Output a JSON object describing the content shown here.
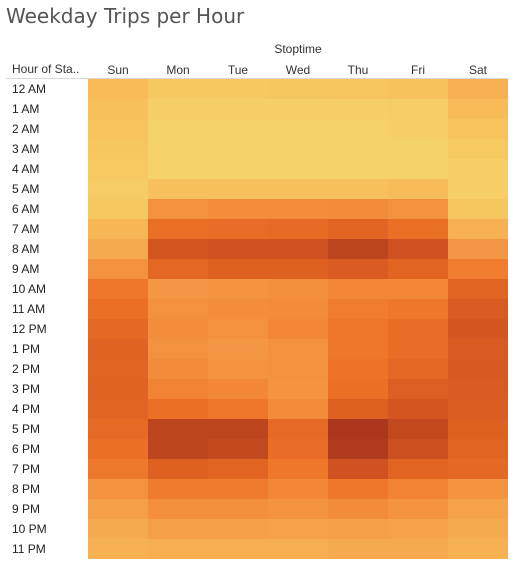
{
  "chart_data": {
    "type": "heatmap",
    "title": "Weekday Trips per Hour",
    "column_field": "Stoptime",
    "row_field": "Hour of Sta..",
    "columns": [
      "Sun",
      "Mon",
      "Tue",
      "Wed",
      "Thu",
      "Fri",
      "Sat"
    ],
    "rows": [
      "12 AM",
      "1 AM",
      "2 AM",
      "3 AM",
      "4 AM",
      "5 AM",
      "6 AM",
      "7 AM",
      "8 AM",
      "9 AM",
      "10 AM",
      "11 AM",
      "12 PM",
      "1 PM",
      "2 PM",
      "3 PM",
      "4 PM",
      "5 PM",
      "6 PM",
      "7 PM",
      "8 PM",
      "9 PM",
      "10 PM",
      "11 PM"
    ],
    "values": [
      [
        0.22,
        0.15,
        0.15,
        0.16,
        0.17,
        0.19,
        0.28
      ],
      [
        0.2,
        0.1,
        0.1,
        0.1,
        0.1,
        0.12,
        0.22
      ],
      [
        0.18,
        0.08,
        0.08,
        0.08,
        0.08,
        0.1,
        0.18
      ],
      [
        0.16,
        0.08,
        0.08,
        0.08,
        0.08,
        0.08,
        0.14
      ],
      [
        0.14,
        0.08,
        0.08,
        0.08,
        0.08,
        0.08,
        0.1
      ],
      [
        0.12,
        0.2,
        0.2,
        0.2,
        0.2,
        0.22,
        0.1
      ],
      [
        0.15,
        0.45,
        0.47,
        0.47,
        0.48,
        0.45,
        0.16
      ],
      [
        0.25,
        0.62,
        0.65,
        0.66,
        0.7,
        0.62,
        0.28
      ],
      [
        0.32,
        0.8,
        0.82,
        0.82,
        0.9,
        0.82,
        0.42
      ],
      [
        0.45,
        0.68,
        0.72,
        0.72,
        0.76,
        0.7,
        0.55
      ],
      [
        0.58,
        0.42,
        0.44,
        0.46,
        0.5,
        0.5,
        0.7
      ],
      [
        0.62,
        0.45,
        0.47,
        0.48,
        0.55,
        0.58,
        0.76
      ],
      [
        0.67,
        0.47,
        0.45,
        0.5,
        0.58,
        0.64,
        0.8
      ],
      [
        0.71,
        0.45,
        0.42,
        0.45,
        0.58,
        0.64,
        0.76
      ],
      [
        0.7,
        0.48,
        0.44,
        0.45,
        0.6,
        0.68,
        0.78
      ],
      [
        0.71,
        0.52,
        0.5,
        0.44,
        0.62,
        0.74,
        0.76
      ],
      [
        0.7,
        0.62,
        0.58,
        0.48,
        0.72,
        0.8,
        0.75
      ],
      [
        0.66,
        0.9,
        0.9,
        0.66,
        0.98,
        0.88,
        0.72
      ],
      [
        0.62,
        0.9,
        0.88,
        0.64,
        0.96,
        0.84,
        0.7
      ],
      [
        0.57,
        0.72,
        0.7,
        0.58,
        0.82,
        0.7,
        0.67
      ],
      [
        0.45,
        0.56,
        0.56,
        0.5,
        0.58,
        0.52,
        0.44
      ],
      [
        0.38,
        0.46,
        0.46,
        0.44,
        0.48,
        0.44,
        0.36
      ],
      [
        0.32,
        0.38,
        0.38,
        0.36,
        0.38,
        0.36,
        0.32
      ],
      [
        0.28,
        0.3,
        0.3,
        0.3,
        0.32,
        0.32,
        0.28
      ]
    ],
    "value_scale": [
      0,
      1
    ],
    "color_scale": [
      "#f4df72",
      "#f7c05a",
      "#f59b47",
      "#ee7326",
      "#d45520",
      "#a6351c"
    ],
    "grid": false
  }
}
